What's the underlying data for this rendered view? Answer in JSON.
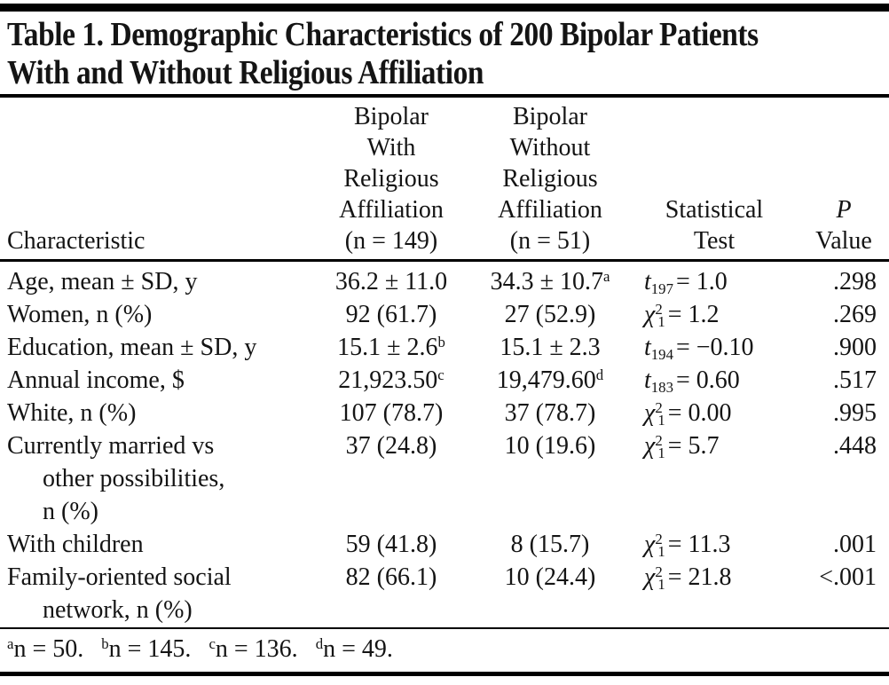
{
  "title_lines": [
    "Table 1. Demographic Characteristics of 200 Bipolar Patients",
    "With and Without Religious Affiliation"
  ],
  "header": {
    "characteristic": "Characteristic",
    "group_with_lines": [
      "Bipolar",
      "With",
      "Religious",
      "Affiliation",
      "(n = 149)"
    ],
    "group_without_lines": [
      "Bipolar",
      "Without",
      "Religious",
      "Affiliation",
      "(n = 51)"
    ],
    "stat_test_lines": [
      "Statistical",
      "Test"
    ],
    "p_value_lines": [
      "P",
      "Value"
    ]
  },
  "rows": [
    {
      "characteristic": [
        "Age, mean ± SD, y"
      ],
      "with": {
        "text": "36.2 ± 11.0"
      },
      "without": {
        "text": "34.3 ± 10.7",
        "sup": "a"
      },
      "stat": {
        "sym": "t",
        "sub": "197",
        "eq": "= 1.0"
      },
      "p": ".298"
    },
    {
      "characteristic": [
        "Women, n (%)"
      ],
      "with": {
        "text": "92 (61.7)"
      },
      "without": {
        "text": "27 (52.9)"
      },
      "stat": {
        "sym": "χ",
        "sup": "2",
        "sub": "1",
        "eq": "= 1.2"
      },
      "p": ".269"
    },
    {
      "characteristic": [
        "Education, mean ± SD, y"
      ],
      "with": {
        "text": "15.1 ± 2.6",
        "sup": "b"
      },
      "without": {
        "text": "15.1 ± 2.3"
      },
      "stat": {
        "sym": "t",
        "sub": "194",
        "eq": "= −0.10"
      },
      "p": ".900"
    },
    {
      "characteristic": [
        "Annual income, $"
      ],
      "with": {
        "text": "21,923.50",
        "sup": "c"
      },
      "without": {
        "text": "19,479.60",
        "sup": "d"
      },
      "stat": {
        "sym": "t",
        "sub": "183",
        "eq": "= 0.60"
      },
      "p": ".517"
    },
    {
      "characteristic": [
        "White, n (%)"
      ],
      "with": {
        "text": "107 (78.7)"
      },
      "without": {
        "text": "37 (78.7)"
      },
      "stat": {
        "sym": "χ",
        "sup": "2",
        "sub": "1",
        "eq": "= 0.00"
      },
      "p": ".995"
    },
    {
      "characteristic": [
        "Currently married vs",
        "other possibilities,",
        "n (%)"
      ],
      "with": {
        "text": "37 (24.8)"
      },
      "without": {
        "text": "10 (19.6)"
      },
      "stat": {
        "sym": "χ",
        "sup": "2",
        "sub": "1",
        "eq": "= 5.7"
      },
      "p": ".448"
    },
    {
      "characteristic": [
        "With children"
      ],
      "with": {
        "text": "59 (41.8)"
      },
      "without": {
        "text": "8 (15.7)"
      },
      "stat": {
        "sym": "χ",
        "sup": "2",
        "sub": "1",
        "eq": "= 11.3"
      },
      "p": ".001"
    },
    {
      "characteristic": [
        "Family-oriented social",
        "network, n (%)"
      ],
      "with": {
        "text": "82 (66.1)"
      },
      "without": {
        "text": "10 (24.4)"
      },
      "stat": {
        "sym": "χ",
        "sup": "2",
        "sub": "1",
        "eq": "= 21.8"
      },
      "p": "<.001"
    }
  ],
  "footnotes": [
    {
      "sup": "a",
      "text": "n = 50."
    },
    {
      "sup": "b",
      "text": "n = 145."
    },
    {
      "sup": "c",
      "text": "n = 136."
    },
    {
      "sup": "d",
      "text": "n = 49."
    }
  ],
  "colors": {
    "text": "#141414",
    "rule": "#000000",
    "background": "#ffffff"
  }
}
